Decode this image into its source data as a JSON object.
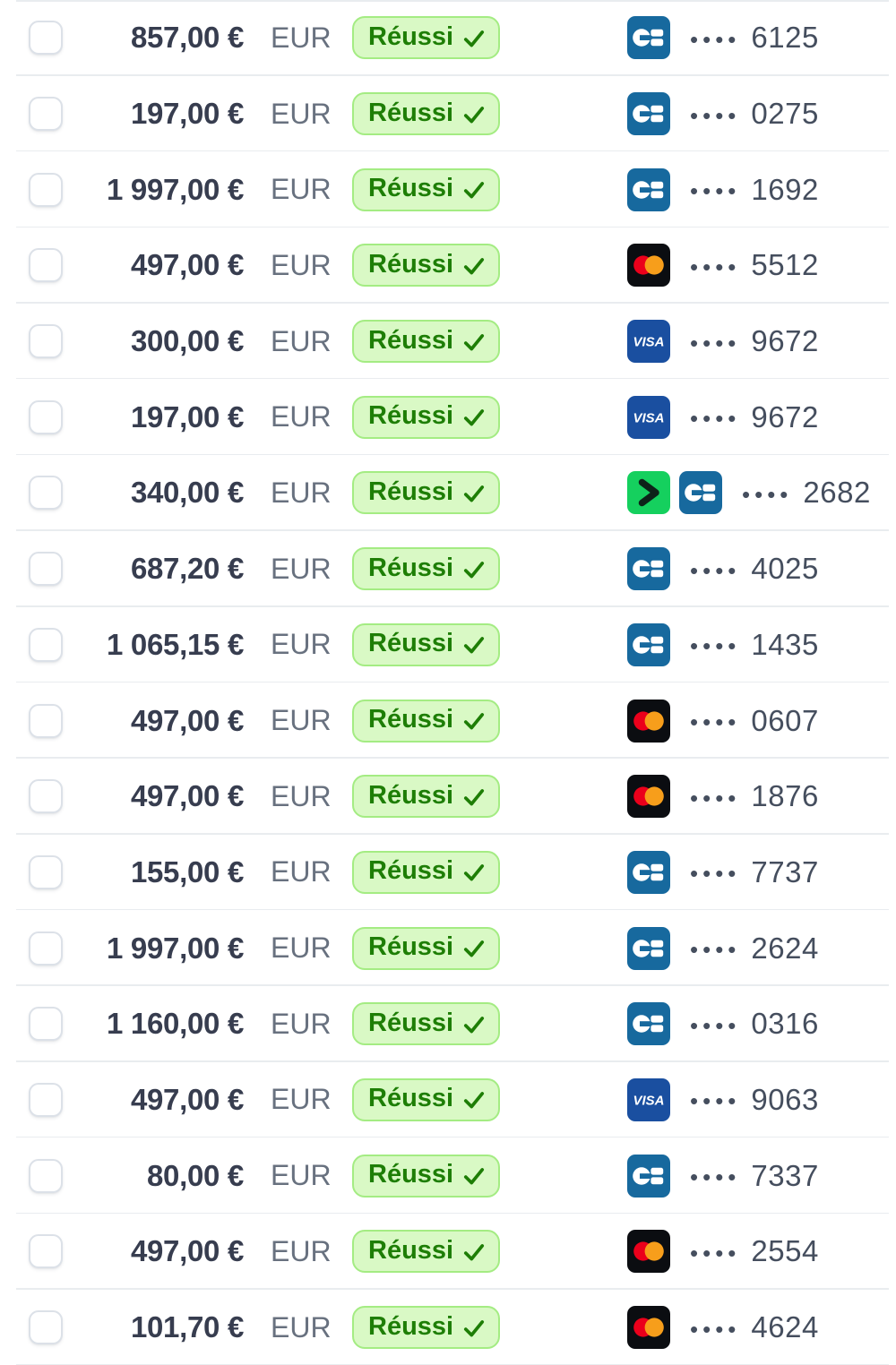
{
  "colors": {
    "success_bg": "#d9f9c5",
    "success_border": "#a4ec83",
    "success_text": "#1e7e06",
    "cb_blue": "#17699e",
    "visa_blue": "#1a4fa0",
    "mastercard_bg": "#0b0d11",
    "mastercard_red": "#eb001b",
    "mastercard_orange": "#f79e1b",
    "link_green": "#15d05e",
    "link_glyph": "#0d2319",
    "amount_text": "#373d4f",
    "muted_text": "#68717f",
    "number_text": "#454e5e",
    "divider": "#e9ecef",
    "checkbox_border": "#dce1e8"
  },
  "table": {
    "card_mask": "••••",
    "rows": [
      {
        "amount": "857,00 €",
        "currency": "EUR",
        "status": "Réussi",
        "brands": [
          "cartes_bancaires"
        ],
        "last4": "6125"
      },
      {
        "amount": "197,00 €",
        "currency": "EUR",
        "status": "Réussi",
        "brands": [
          "cartes_bancaires"
        ],
        "last4": "0275"
      },
      {
        "amount": "1 997,00 €",
        "currency": "EUR",
        "status": "Réussi",
        "brands": [
          "cartes_bancaires"
        ],
        "last4": "1692"
      },
      {
        "amount": "497,00 €",
        "currency": "EUR",
        "status": "Réussi",
        "brands": [
          "mastercard"
        ],
        "last4": "5512"
      },
      {
        "amount": "300,00 €",
        "currency": "EUR",
        "status": "Réussi",
        "brands": [
          "visa"
        ],
        "last4": "9672"
      },
      {
        "amount": "197,00 €",
        "currency": "EUR",
        "status": "Réussi",
        "brands": [
          "visa"
        ],
        "last4": "9672"
      },
      {
        "amount": "340,00 €",
        "currency": "EUR",
        "status": "Réussi",
        "brands": [
          "link",
          "cartes_bancaires"
        ],
        "last4": "2682"
      },
      {
        "amount": "687,20 €",
        "currency": "EUR",
        "status": "Réussi",
        "brands": [
          "cartes_bancaires"
        ],
        "last4": "4025"
      },
      {
        "amount": "1 065,15 €",
        "currency": "EUR",
        "status": "Réussi",
        "brands": [
          "cartes_bancaires"
        ],
        "last4": "1435"
      },
      {
        "amount": "497,00 €",
        "currency": "EUR",
        "status": "Réussi",
        "brands": [
          "mastercard"
        ],
        "last4": "0607"
      },
      {
        "amount": "497,00 €",
        "currency": "EUR",
        "status": "Réussi",
        "brands": [
          "mastercard"
        ],
        "last4": "1876"
      },
      {
        "amount": "155,00 €",
        "currency": "EUR",
        "status": "Réussi",
        "brands": [
          "cartes_bancaires"
        ],
        "last4": "7737"
      },
      {
        "amount": "1 997,00 €",
        "currency": "EUR",
        "status": "Réussi",
        "brands": [
          "cartes_bancaires"
        ],
        "last4": "2624"
      },
      {
        "amount": "1 160,00 €",
        "currency": "EUR",
        "status": "Réussi",
        "brands": [
          "cartes_bancaires"
        ],
        "last4": "0316"
      },
      {
        "amount": "497,00 €",
        "currency": "EUR",
        "status": "Réussi",
        "brands": [
          "visa"
        ],
        "last4": "9063"
      },
      {
        "amount": "80,00 €",
        "currency": "EUR",
        "status": "Réussi",
        "brands": [
          "cartes_bancaires"
        ],
        "last4": "7337"
      },
      {
        "amount": "497,00 €",
        "currency": "EUR",
        "status": "Réussi",
        "brands": [
          "mastercard"
        ],
        "last4": "2554"
      },
      {
        "amount": "101,70 €",
        "currency": "EUR",
        "status": "Réussi",
        "brands": [
          "mastercard"
        ],
        "last4": "4624"
      }
    ]
  }
}
